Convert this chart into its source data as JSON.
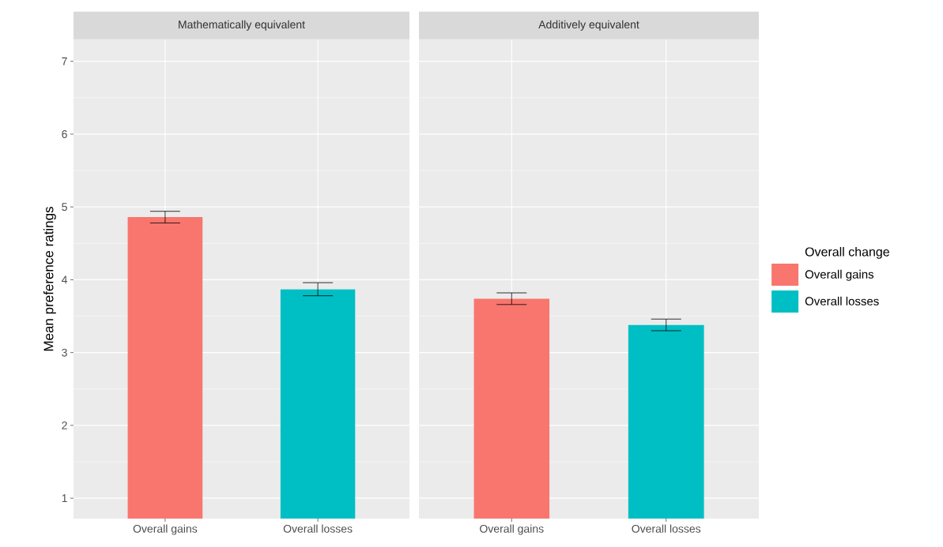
{
  "chart_data": [
    {
      "type": "bar",
      "title": "Mathematically equivalent",
      "ylabel": "Mean preference ratings",
      "categories": [
        "Overall gains",
        "Overall losses"
      ],
      "series": [
        {
          "color": "#f8766d",
          "values": [
            4.86,
            null
          ],
          "errors": [
            0.08,
            null
          ]
        },
        {
          "color": "#00bfc4",
          "values": [
            null,
            3.87
          ],
          "errors": [
            null,
            0.09
          ]
        }
      ],
      "ylim": [
        0.72,
        7.3
      ],
      "yticks": [
        1,
        2,
        3,
        4,
        5,
        6,
        7
      ],
      "grid": true,
      "legend": false
    },
    {
      "type": "bar",
      "title": "Additively equivalent",
      "categories": [
        "Overall gains",
        "Overall losses"
      ],
      "series": [
        {
          "name": "Overall gains",
          "color": "#f8766d",
          "values": [
            3.74,
            null
          ],
          "errors": [
            0.08,
            null
          ]
        },
        {
          "name": "Overall losses",
          "color": "#00bfc4",
          "values": [
            null,
            3.38
          ],
          "errors": [
            null,
            0.08
          ]
        }
      ],
      "ylim": [
        0.72,
        7.3
      ],
      "yticks": [
        1,
        2,
        3,
        4,
        5,
        6,
        7
      ],
      "grid": true,
      "legend": "right",
      "legend_title": "Overall change",
      "tick_labels": "x"
    }
  ]
}
